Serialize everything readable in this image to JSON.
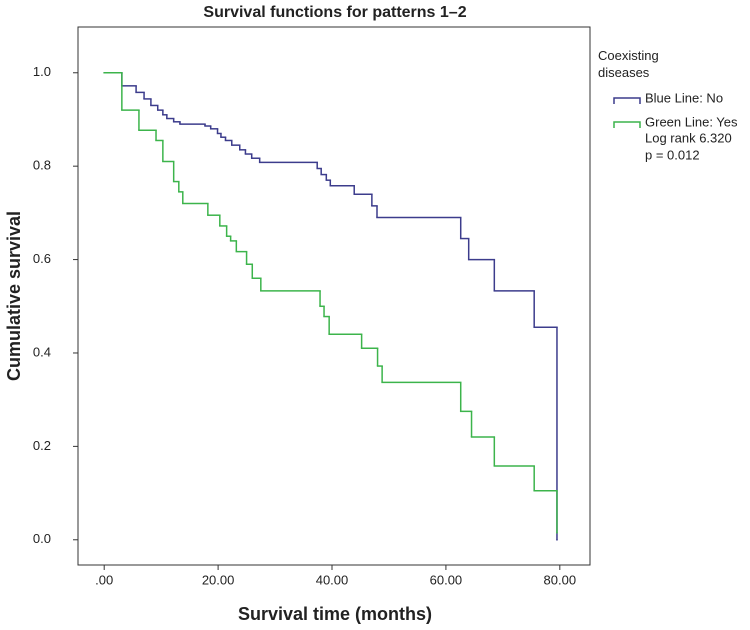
{
  "chart_data": {
    "type": "step",
    "title": "Survival functions for patterns 1–2",
    "x_label": "Survival time (months)",
    "y_label": "Cumulative survival",
    "legend_title": "Coexisting diseases",
    "annotations": [
      "Log rank 6.320",
      "p =  0.012"
    ],
    "xlim": [
      -4.6,
      85.3
    ],
    "ylim": [
      -0.054,
      1.098
    ],
    "xticks": [
      {
        "value": 0,
        "label": ".00"
      },
      {
        "value": 20,
        "label": "20.00"
      },
      {
        "value": 40,
        "label": "40.00"
      },
      {
        "value": 60,
        "label": "60.00"
      },
      {
        "value": 80,
        "label": "80.00"
      }
    ],
    "yticks": [
      {
        "value": 0,
        "label": "0.0"
      },
      0.2,
      0.4,
      0.6,
      0.8,
      {
        "value": 1,
        "label": "1.0"
      }
    ],
    "series": [
      {
        "name": "Blue Line: No",
        "color": "#3c3c8c",
        "x": [
          0,
          3.1,
          5.6,
          7.0,
          8.2,
          9.4,
          10.3,
          11.0,
          12.2,
          13.3,
          17.7,
          18.7,
          19.9,
          20.5,
          21.3,
          22.4,
          23.8,
          24.8,
          25.9,
          27.3,
          37.4,
          38.1,
          39.0,
          39.7,
          43.9,
          47.0,
          47.9,
          62.6,
          64.0,
          68.5,
          75.5,
          79.5
        ],
        "values": [
          1.0,
          0.972,
          0.958,
          0.944,
          0.93,
          0.92,
          0.91,
          0.902,
          0.895,
          0.89,
          0.886,
          0.88,
          0.87,
          0.862,
          0.855,
          0.845,
          0.835,
          0.826,
          0.817,
          0.808,
          0.795,
          0.782,
          0.77,
          0.758,
          0.74,
          0.715,
          0.69,
          0.645,
          0.6,
          0.533,
          0.455,
          0.0
        ]
      },
      {
        "name": "Green Line: Yes",
        "color": "#3cb44b",
        "x": [
          0,
          3.1,
          6.1,
          9.1,
          10.3,
          12.2,
          13.1,
          13.8,
          18.2,
          20.3,
          21.5,
          22.2,
          23.2,
          25.0,
          26.0,
          27.5,
          37.9,
          38.6,
          39.5,
          45.2,
          48.0,
          48.8,
          62.6,
          64.5,
          68.5,
          75.5,
          79.5
        ],
        "values": [
          1.0,
          0.92,
          0.877,
          0.855,
          0.81,
          0.767,
          0.745,
          0.72,
          0.695,
          0.672,
          0.65,
          0.64,
          0.617,
          0.59,
          0.56,
          0.533,
          0.5,
          0.478,
          0.44,
          0.41,
          0.372,
          0.337,
          0.275,
          0.22,
          0.158,
          0.105,
          0.015
        ]
      }
    ]
  }
}
